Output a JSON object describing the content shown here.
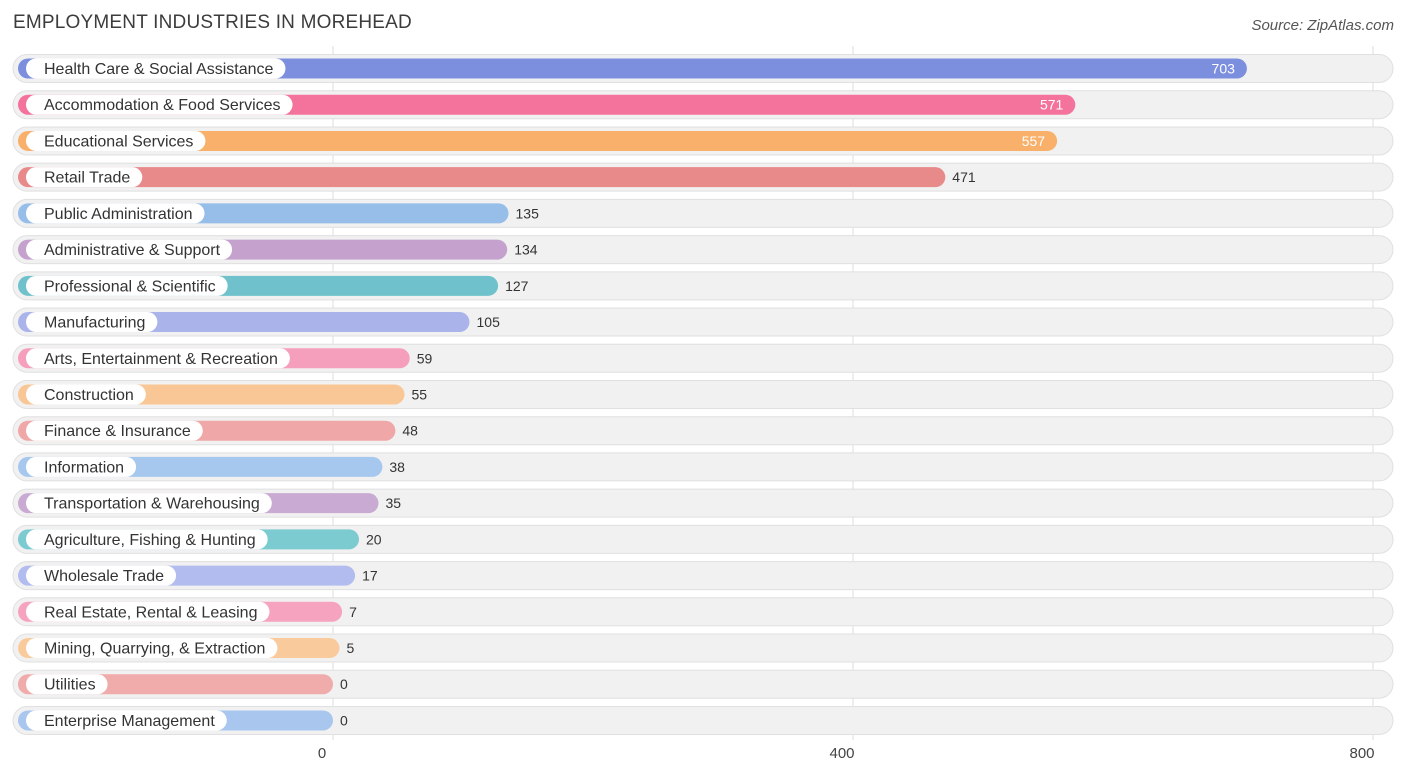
{
  "title": "EMPLOYMENT INDUSTRIES IN MOREHEAD",
  "source": "Source: ZipAtlas.com",
  "chart_data": {
    "type": "bar",
    "orientation": "horizontal",
    "title": "EMPLOYMENT INDUSTRIES IN MOREHEAD",
    "xlabel": "",
    "ylabel": "",
    "xlim": [
      0,
      800
    ],
    "ticks": [
      {
        "value": 0,
        "label": "0"
      },
      {
        "value": 400,
        "label": "400"
      },
      {
        "value": 800,
        "label": "800"
      }
    ],
    "grid": true,
    "categories": [
      "Health Care & Social Assistance",
      "Accommodation & Food Services",
      "Educational Services",
      "Retail Trade",
      "Public Administration",
      "Administrative & Support",
      "Professional & Scientific",
      "Manufacturing",
      "Arts, Entertainment & Recreation",
      "Construction",
      "Finance & Insurance",
      "Information",
      "Transportation & Warehousing",
      "Agriculture, Fishing & Hunting",
      "Wholesale Trade",
      "Real Estate, Rental & Leasing",
      "Mining, Quarrying, & Extraction",
      "Utilities",
      "Enterprise Management"
    ],
    "values": [
      703,
      571,
      557,
      471,
      135,
      134,
      127,
      105,
      59,
      55,
      48,
      38,
      35,
      20,
      17,
      7,
      5,
      0,
      0
    ],
    "value_labels": [
      "703",
      "571",
      "557",
      "471",
      "135",
      "134",
      "127",
      "105",
      "59",
      "55",
      "48",
      "38",
      "35",
      "20",
      "17",
      "7",
      "5",
      "0",
      "0"
    ],
    "colors": [
      "#7b8fde",
      "#f4739c",
      "#f8b06a",
      "#e8898a",
      "#97bde9",
      "#c4a2cd",
      "#6fc2cb",
      "#aab4ea",
      "#f59fbc",
      "#f9c795",
      "#efa7a7",
      "#a7c8ee",
      "#c9aad2",
      "#7ccbd1",
      "#b3bcef",
      "#f6a3c0",
      "#f9cb9c",
      "#f0abab",
      "#a9c6ef"
    ]
  }
}
